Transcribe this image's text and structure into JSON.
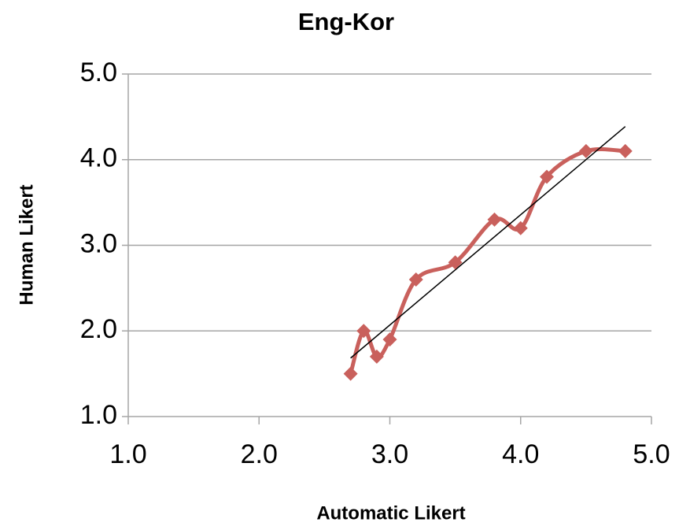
{
  "chart_data": {
    "type": "line",
    "smooth": true,
    "trendline": true,
    "title": "Eng-Kor",
    "x_label": "Automatic Likert",
    "y_label": "Human Likert",
    "x": [
      2.7,
      2.8,
      2.9,
      3.0,
      3.2,
      3.5,
      3.8,
      4.0,
      4.2,
      4.5,
      4.8
    ],
    "values": [
      1.5,
      2.0,
      1.7,
      1.9,
      2.6,
      2.8,
      3.3,
      3.2,
      3.8,
      4.1,
      4.1
    ],
    "color": "#c9605c",
    "xlim": [
      1,
      5
    ],
    "xticks": [
      {
        "value": 1,
        "label": "1.0"
      },
      {
        "value": 2,
        "label": "2.0"
      },
      {
        "value": 3,
        "label": "3.0"
      },
      {
        "value": 4,
        "label": "4.0"
      },
      {
        "value": 5,
        "label": "5.0"
      }
    ],
    "ylim": [
      1,
      5
    ],
    "yticks": [
      {
        "value": 1,
        "label": "1.0"
      },
      {
        "value": 2,
        "label": "2.0"
      },
      {
        "value": 3,
        "label": "3.0"
      },
      {
        "value": 4,
        "label": "4.0"
      },
      {
        "value": 5,
        "label": "5.0"
      }
    ],
    "grid": true
  }
}
